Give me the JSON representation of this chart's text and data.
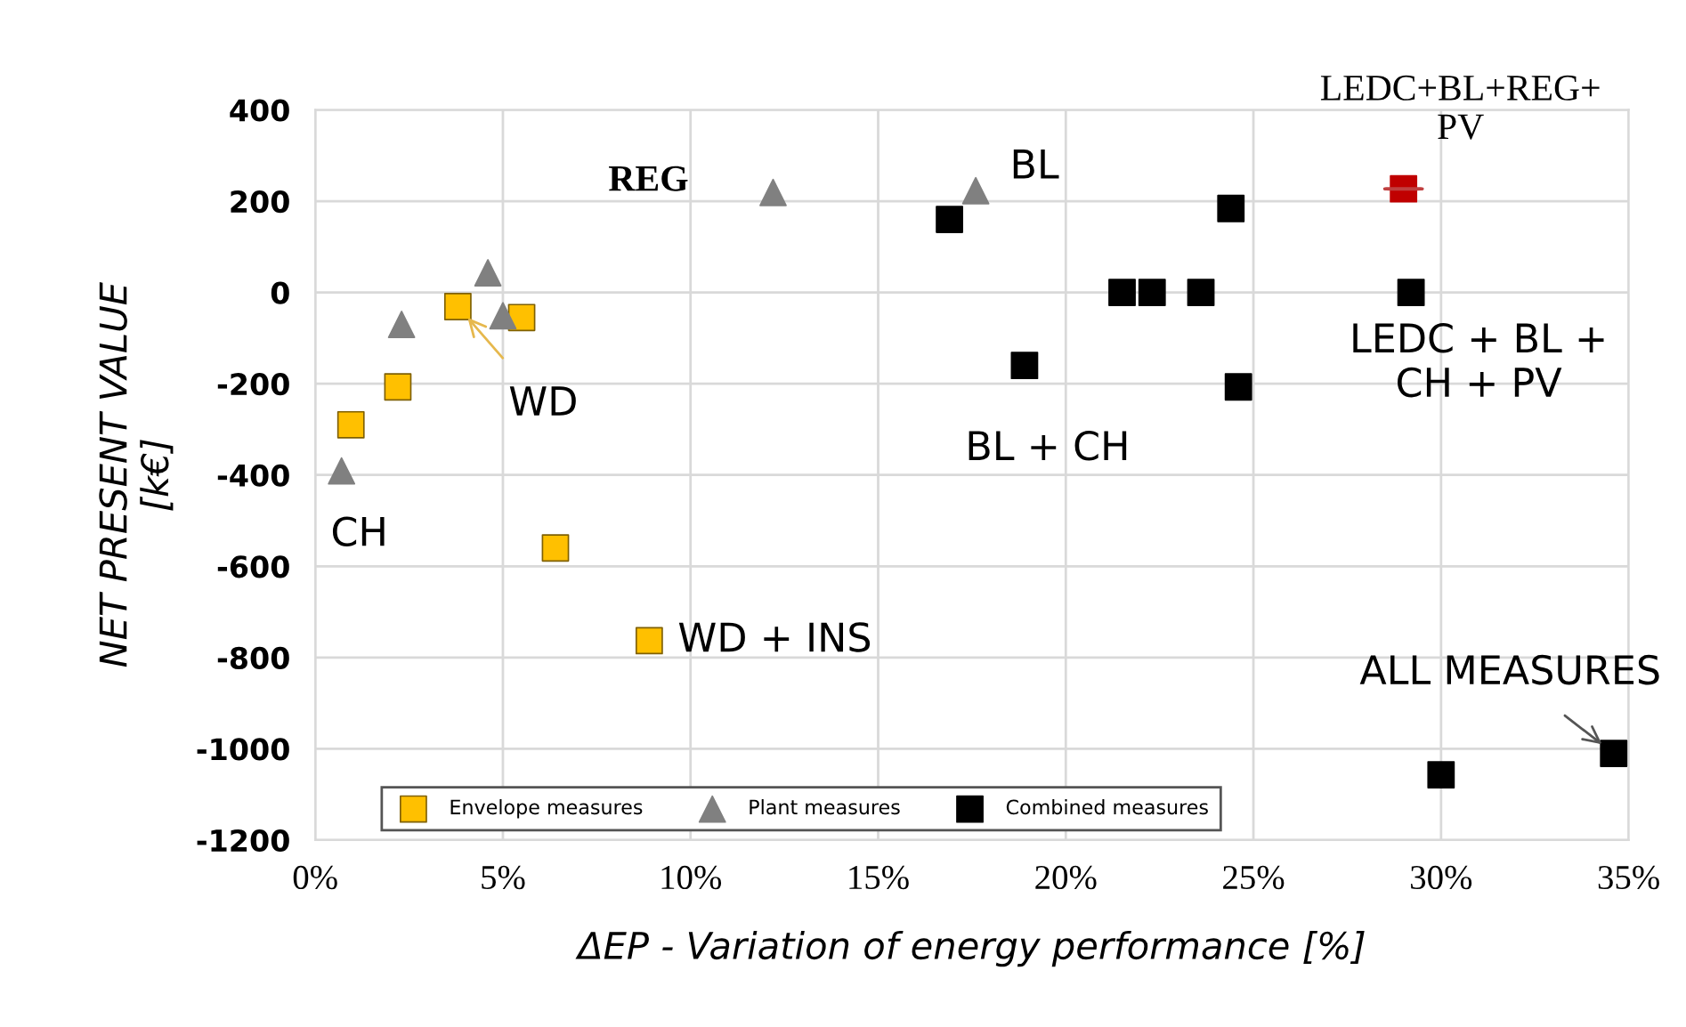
{
  "chart_data": {
    "type": "scatter",
    "xlabel": "ΔEP - Variation of energy performance [%]",
    "ylabel": "NET PRESENT VALUE\n[k€]",
    "xlim": [
      0,
      35
    ],
    "ylim": [
      -1200,
      400
    ],
    "xticks": [
      {
        "value": 0,
        "label": "0%"
      },
      {
        "value": 5,
        "label": "5%"
      },
      {
        "value": 10,
        "label": "10%"
      },
      {
        "value": 15,
        "label": "15%"
      },
      {
        "value": 20,
        "label": "20%"
      },
      {
        "value": 25,
        "label": "25%"
      },
      {
        "value": 30,
        "label": "30%"
      },
      {
        "value": 35,
        "label": "35%"
      }
    ],
    "yticks": [
      -1200,
      -1000,
      -800,
      -600,
      -400,
      -200,
      0,
      200,
      400
    ],
    "grid": true,
    "legend": "bottom",
    "series": [
      {
        "name": "Envelope measures",
        "color": "#ffc000",
        "marker": "square",
        "x": [
          0.95,
          2.2,
          3.8,
          5.5,
          6.4,
          8.9
        ],
        "values": [
          -290,
          -207,
          -31,
          -55,
          -560,
          -763
        ]
      },
      {
        "name": "Plant measures",
        "color": "#808080",
        "marker": "triangle",
        "x": [
          0.7,
          2.3,
          4.6,
          5.0,
          12.2,
          17.6
        ],
        "values": [
          -391,
          -70,
          43,
          -51,
          219,
          223
        ]
      },
      {
        "name": "Combined measures",
        "color": "#000000",
        "marker": "square",
        "x": [
          16.9,
          18.9,
          21.5,
          22.3,
          23.6,
          24.4,
          24.6,
          29.2,
          30.0,
          34.6
        ],
        "values": [
          160,
          -160,
          0,
          0,
          0,
          184,
          -207,
          0,
          -1057,
          -1010
        ]
      },
      {
        "color": "#c00000",
        "marker": "square",
        "x": [
          29.0
        ],
        "values": [
          227
        ]
      }
    ],
    "annotations": [
      {
        "text": "REG",
        "x": 12.2,
        "y": 219
      },
      {
        "text": "BL",
        "x": 17.6,
        "y": 223
      },
      {
        "text": "LEDC+BL+REG+\nPV",
        "x": 29.0,
        "y": 227
      },
      {
        "text": "LEDC + BL +\nCH + PV",
        "x": 29.2,
        "y": 0
      },
      {
        "text": "BL + CH",
        "x": 18.9,
        "y": -160
      },
      {
        "text": "WD",
        "x": 3.8,
        "y": -31
      },
      {
        "text": "CH",
        "x": 0.7,
        "y": -391
      },
      {
        "text": "WD + INS",
        "x": 8.9,
        "y": -763
      },
      {
        "text": "ALL MEASURES",
        "x": 34.6,
        "y": -1010
      }
    ]
  }
}
